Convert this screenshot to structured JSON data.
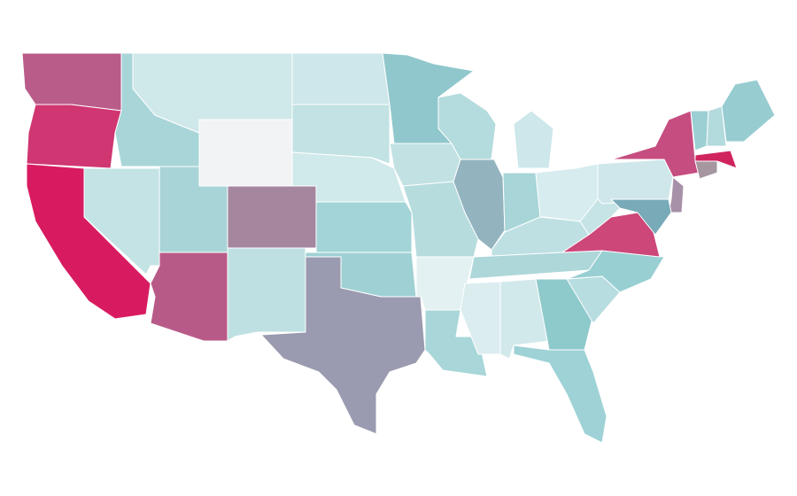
{
  "map": {
    "regions": [
      {
        "color": "#b95c8a"
      },
      {
        "color": "#cf3672"
      },
      {
        "color": "#d81b60"
      },
      {
        "color": "#c3e3e4"
      },
      {
        "color": "#a8d5d8"
      },
      {
        "color": "#cfe8ea"
      },
      {
        "color": "#f2f3f5"
      },
      {
        "color": "#a9d4d7"
      },
      {
        "color": "#b85a88"
      },
      {
        "color": "#a5869f"
      },
      {
        "color": "#bfe0e2"
      },
      {
        "color": "#cde7ea"
      },
      {
        "color": "#c2e2e3"
      },
      {
        "color": "#d0e9ea"
      },
      {
        "color": "#a3d4d7"
      },
      {
        "color": "#9fd1d4"
      },
      {
        "color": "#9a9ab0"
      },
      {
        "color": "#8fc7cc"
      },
      {
        "color": "#c2e1e3"
      },
      {
        "color": "#b6dcde"
      },
      {
        "color": "#e3f1f3"
      },
      {
        "color": "#a8d6d9"
      },
      {
        "color": "#b4dbdd"
      },
      {
        "color": "#93b4bf"
      },
      {
        "color": "#cde7ea"
      },
      {
        "color": "#a7d5d8"
      },
      {
        "color": "#d6ecee"
      },
      {
        "color": "#bfe0e2"
      },
      {
        "color": "#aed7da"
      },
      {
        "color": "#dcedf0"
      },
      {
        "color": "#d2e9eb"
      },
      {
        "color": "#8ec9cb"
      },
      {
        "color": "#9ed2d6"
      },
      {
        "color": "#b7dde0"
      },
      {
        "color": "#98cfd2"
      },
      {
        "color": "#cd4779"
      },
      {
        "color": "#c6e3e5"
      },
      {
        "color": "#cfe7ea"
      },
      {
        "color": "#c64d80"
      },
      {
        "color": "#a791a8"
      },
      {
        "color": "#78aab8"
      },
      {
        "color": "#a5969f"
      },
      {
        "color": "#d0245f"
      },
      {
        "color": "#9bcfd3"
      },
      {
        "color": "#b3dadd"
      },
      {
        "color": "#97ccd1"
      }
    ]
  }
}
